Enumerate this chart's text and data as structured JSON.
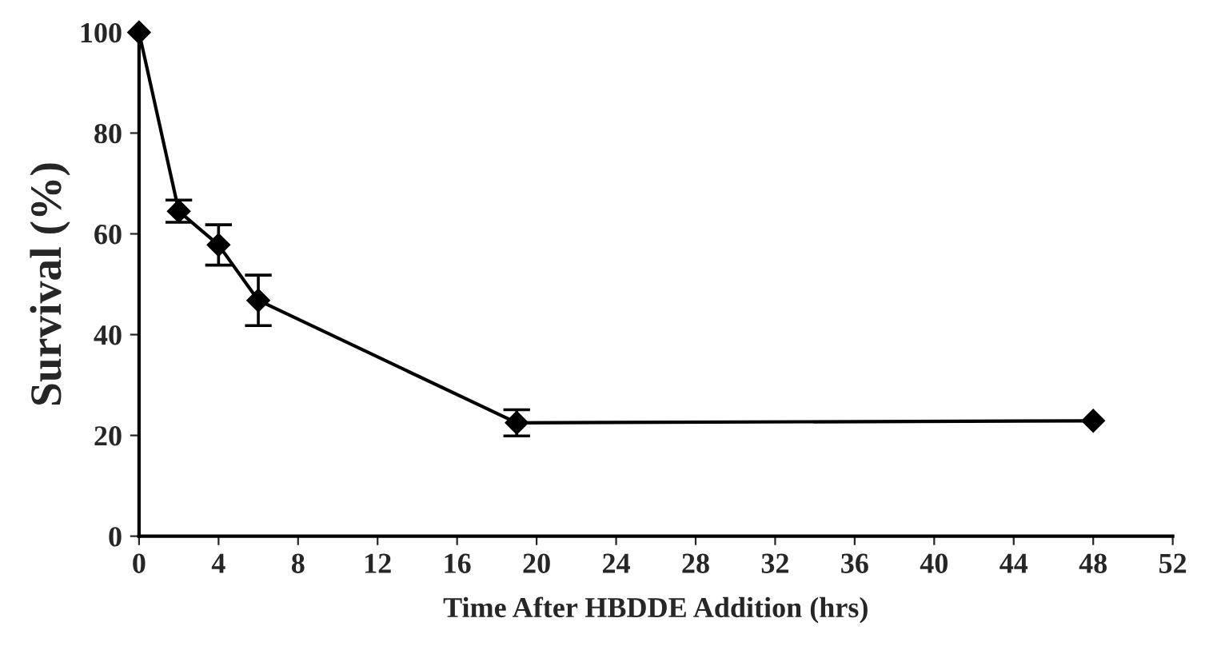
{
  "chart_data": {
    "type": "line",
    "xlabel": "Time After HBDDE Addition (hrs)",
    "ylabel": "Survival (%)",
    "x": [
      0,
      2,
      4,
      6,
      19,
      48
    ],
    "values": [
      100,
      64.5,
      57.8,
      46.8,
      22.5,
      22.9
    ],
    "errors": [
      null,
      2.2,
      4,
      5,
      2.6,
      null
    ],
    "color": "#000000",
    "marker": "diamond",
    "line_style": "solid",
    "xlim": [
      0,
      52
    ],
    "xticks": [
      0,
      4,
      8,
      12,
      16,
      20,
      24,
      28,
      32,
      36,
      40,
      44,
      48,
      52
    ],
    "ylim": [
      0,
      100
    ],
    "yticks": [
      0,
      20,
      40,
      60,
      80,
      100
    ],
    "grid": false,
    "legend": false
  }
}
